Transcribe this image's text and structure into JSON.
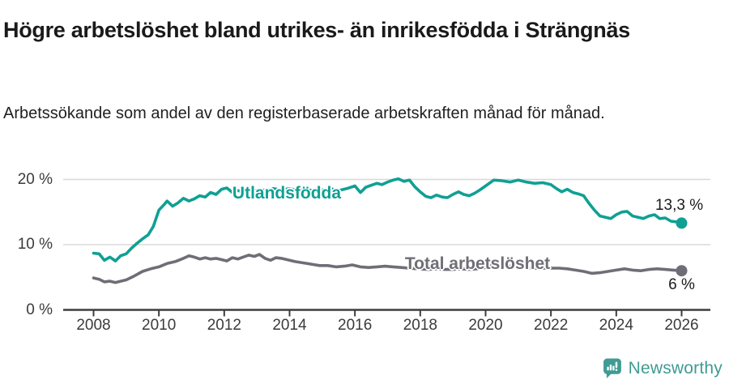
{
  "header": {
    "title": "Högre arbetslöshet bland utrikes- än inrikesfödda i Strängnäs",
    "subtitle": "Arbetssökande som andel av den registerbaserade arbetskraften månad för månad."
  },
  "footer": {
    "brand": "Newsworthy",
    "logo_icon": "newsworthy-speech-bubble-bar-chart-icon",
    "brand_color": "#3f9b94"
  },
  "colors": {
    "foreign_born_line": "#0fa093",
    "total_line": "#6e6e77",
    "gridline": "#d8d8d8",
    "axis": "#3d3d3d",
    "tick_text": "#3b3b3b",
    "title_text": "#1a1a1a",
    "value_label_text": "#1a1a1a"
  },
  "chart_data": {
    "type": "line",
    "title": "Högre arbetslöshet bland utrikes- än inrikesfödda i Strängnäs",
    "subtitle": "Arbetssökande som andel av den registerbaserade arbetskraften månad för månad.",
    "xlabel": "",
    "ylabel": "",
    "x_ticks": [
      2008,
      2010,
      2012,
      2014,
      2016,
      2018,
      2020,
      2022,
      2024,
      2026
    ],
    "x_tick_labels": [
      "2008",
      "2010",
      "2012",
      "2014",
      "2016",
      "2018",
      "2020",
      "2022",
      "2024",
      "2026"
    ],
    "y_ticks": [
      0,
      10,
      20
    ],
    "y_tick_labels": [
      "0 %",
      "10 %",
      "20 %"
    ],
    "xlim": [
      2007.1,
      2026.9
    ],
    "ylim": [
      0,
      21.5
    ],
    "grid": "horizontal",
    "legend": "inline-labels",
    "series": [
      {
        "name": "Utlandsfödda",
        "color": "#0fa093",
        "end_value_label": "13,3 %",
        "points": [
          [
            2008.0,
            8.7
          ],
          [
            2008.17,
            8.6
          ],
          [
            2008.33,
            7.6
          ],
          [
            2008.5,
            8.1
          ],
          [
            2008.67,
            7.5
          ],
          [
            2008.83,
            8.3
          ],
          [
            2009.0,
            8.6
          ],
          [
            2009.17,
            9.5
          ],
          [
            2009.33,
            10.2
          ],
          [
            2009.5,
            10.9
          ],
          [
            2009.67,
            11.5
          ],
          [
            2009.83,
            12.8
          ],
          [
            2010.0,
            15.3
          ],
          [
            2010.17,
            16.2
          ],
          [
            2010.25,
            16.7
          ],
          [
            2010.42,
            15.9
          ],
          [
            2010.58,
            16.4
          ],
          [
            2010.75,
            17.1
          ],
          [
            2010.92,
            16.7
          ],
          [
            2011.08,
            17.0
          ],
          [
            2011.25,
            17.5
          ],
          [
            2011.42,
            17.3
          ],
          [
            2011.58,
            18.0
          ],
          [
            2011.75,
            17.7
          ],
          [
            2011.92,
            18.5
          ],
          [
            2012.08,
            18.7
          ],
          [
            2012.25,
            18.0
          ],
          [
            2012.42,
            18.3
          ],
          [
            2012.58,
            18.1
          ],
          [
            2012.75,
            18.4
          ],
          [
            2012.92,
            18.2
          ],
          [
            2013.08,
            18.5
          ],
          [
            2013.25,
            18.3
          ],
          [
            2013.5,
            18.6
          ],
          [
            2013.75,
            18.4
          ],
          [
            2014.0,
            18.6
          ],
          [
            2014.25,
            18.3
          ],
          [
            2014.5,
            18.5
          ],
          [
            2014.75,
            18.2
          ],
          [
            2015.0,
            18.4
          ],
          [
            2015.25,
            18.6
          ],
          [
            2015.5,
            18.3
          ],
          [
            2015.75,
            18.6
          ],
          [
            2016.0,
            19.0
          ],
          [
            2016.17,
            18.0
          ],
          [
            2016.33,
            18.8
          ],
          [
            2016.5,
            19.1
          ],
          [
            2016.67,
            19.4
          ],
          [
            2016.83,
            19.2
          ],
          [
            2017.0,
            19.6
          ],
          [
            2017.17,
            19.9
          ],
          [
            2017.33,
            20.1
          ],
          [
            2017.5,
            19.7
          ],
          [
            2017.67,
            19.9
          ],
          [
            2017.83,
            18.9
          ],
          [
            2018.0,
            18.1
          ],
          [
            2018.17,
            17.4
          ],
          [
            2018.33,
            17.2
          ],
          [
            2018.5,
            17.6
          ],
          [
            2018.67,
            17.3
          ],
          [
            2018.83,
            17.2
          ],
          [
            2019.0,
            17.7
          ],
          [
            2019.17,
            18.1
          ],
          [
            2019.33,
            17.7
          ],
          [
            2019.5,
            17.5
          ],
          [
            2019.67,
            17.9
          ],
          [
            2019.83,
            18.4
          ],
          [
            2020.0,
            19.0
          ],
          [
            2020.25,
            19.9
          ],
          [
            2020.5,
            19.8
          ],
          [
            2020.75,
            19.6
          ],
          [
            2021.0,
            19.9
          ],
          [
            2021.25,
            19.6
          ],
          [
            2021.5,
            19.4
          ],
          [
            2021.75,
            19.5
          ],
          [
            2022.0,
            19.2
          ],
          [
            2022.17,
            18.6
          ],
          [
            2022.33,
            18.1
          ],
          [
            2022.5,
            18.5
          ],
          [
            2022.67,
            18.0
          ],
          [
            2022.83,
            17.8
          ],
          [
            2023.0,
            17.5
          ],
          [
            2023.17,
            16.3
          ],
          [
            2023.33,
            15.3
          ],
          [
            2023.5,
            14.4
          ],
          [
            2023.67,
            14.2
          ],
          [
            2023.83,
            14.0
          ],
          [
            2024.0,
            14.6
          ],
          [
            2024.17,
            15.0
          ],
          [
            2024.33,
            15.1
          ],
          [
            2024.5,
            14.4
          ],
          [
            2024.67,
            14.2
          ],
          [
            2024.83,
            14.0
          ],
          [
            2025.0,
            14.4
          ],
          [
            2025.17,
            14.6
          ],
          [
            2025.33,
            14.0
          ],
          [
            2025.5,
            14.1
          ],
          [
            2025.67,
            13.6
          ],
          [
            2025.83,
            13.5
          ],
          [
            2026.0,
            13.3
          ]
        ]
      },
      {
        "name": "Total arbetslöshet",
        "color": "#6e6e77",
        "end_value_label": "6 %",
        "points": [
          [
            2008.0,
            4.9
          ],
          [
            2008.17,
            4.7
          ],
          [
            2008.33,
            4.3
          ],
          [
            2008.5,
            4.4
          ],
          [
            2008.67,
            4.2
          ],
          [
            2008.83,
            4.4
          ],
          [
            2009.0,
            4.6
          ],
          [
            2009.25,
            5.2
          ],
          [
            2009.5,
            5.9
          ],
          [
            2009.75,
            6.3
          ],
          [
            2010.0,
            6.6
          ],
          [
            2010.25,
            7.1
          ],
          [
            2010.5,
            7.4
          ],
          [
            2010.75,
            7.9
          ],
          [
            2010.92,
            8.3
          ],
          [
            2011.08,
            8.1
          ],
          [
            2011.25,
            7.8
          ],
          [
            2011.42,
            8.0
          ],
          [
            2011.58,
            7.8
          ],
          [
            2011.75,
            7.9
          ],
          [
            2011.92,
            7.7
          ],
          [
            2012.08,
            7.5
          ],
          [
            2012.25,
            8.0
          ],
          [
            2012.42,
            7.8
          ],
          [
            2012.58,
            8.1
          ],
          [
            2012.75,
            8.4
          ],
          [
            2012.92,
            8.2
          ],
          [
            2013.08,
            8.5
          ],
          [
            2013.25,
            7.9
          ],
          [
            2013.42,
            7.6
          ],
          [
            2013.58,
            8.0
          ],
          [
            2013.75,
            7.9
          ],
          [
            2013.92,
            7.7
          ],
          [
            2014.17,
            7.4
          ],
          [
            2014.42,
            7.2
          ],
          [
            2014.67,
            7.0
          ],
          [
            2014.92,
            6.8
          ],
          [
            2015.17,
            6.8
          ],
          [
            2015.42,
            6.6
          ],
          [
            2015.67,
            6.7
          ],
          [
            2015.92,
            6.9
          ],
          [
            2016.17,
            6.6
          ],
          [
            2016.42,
            6.5
          ],
          [
            2016.67,
            6.6
          ],
          [
            2016.92,
            6.7
          ],
          [
            2017.17,
            6.6
          ],
          [
            2017.42,
            6.5
          ],
          [
            2017.67,
            6.4
          ],
          [
            2017.92,
            6.3
          ],
          [
            2018.25,
            6.2
          ],
          [
            2018.5,
            6.3
          ],
          [
            2018.75,
            6.2
          ],
          [
            2019.0,
            6.2
          ],
          [
            2019.25,
            6.3
          ],
          [
            2019.5,
            6.2
          ],
          [
            2019.75,
            6.3
          ],
          [
            2020.0,
            6.5
          ],
          [
            2020.25,
            6.9
          ],
          [
            2020.5,
            6.8
          ],
          [
            2020.75,
            6.7
          ],
          [
            2021.0,
            6.6
          ],
          [
            2021.25,
            6.5
          ],
          [
            2021.5,
            6.4
          ],
          [
            2021.75,
            6.4
          ],
          [
            2022.0,
            6.4
          ],
          [
            2022.25,
            6.4
          ],
          [
            2022.5,
            6.3
          ],
          [
            2022.75,
            6.1
          ],
          [
            2023.0,
            5.9
          ],
          [
            2023.25,
            5.6
          ],
          [
            2023.5,
            5.7
          ],
          [
            2023.75,
            5.9
          ],
          [
            2024.0,
            6.1
          ],
          [
            2024.25,
            6.3
          ],
          [
            2024.5,
            6.1
          ],
          [
            2024.75,
            6.0
          ],
          [
            2025.0,
            6.2
          ],
          [
            2025.25,
            6.3
          ],
          [
            2025.5,
            6.2
          ],
          [
            2025.75,
            6.1
          ],
          [
            2026.0,
            6.0
          ]
        ]
      }
    ],
    "annotations": [
      {
        "text": "Utlandsfödda",
        "x": 2012.25,
        "y": 17.8,
        "align": "left",
        "color": "#0fa093",
        "bold": true
      },
      {
        "text": "Total arbetslöshet",
        "x": 2017.53,
        "y": 7.0,
        "align": "left",
        "color": "#6e6e77",
        "bold": true
      },
      {
        "text": "13,3 %",
        "x": 2026.66,
        "y": 16.0,
        "align": "right",
        "color": "#1a1a1a",
        "bold": false
      },
      {
        "text": "6 %",
        "x": 2026.0,
        "y": 3.8,
        "align": "center",
        "color": "#1a1a1a",
        "bold": false
      }
    ]
  }
}
